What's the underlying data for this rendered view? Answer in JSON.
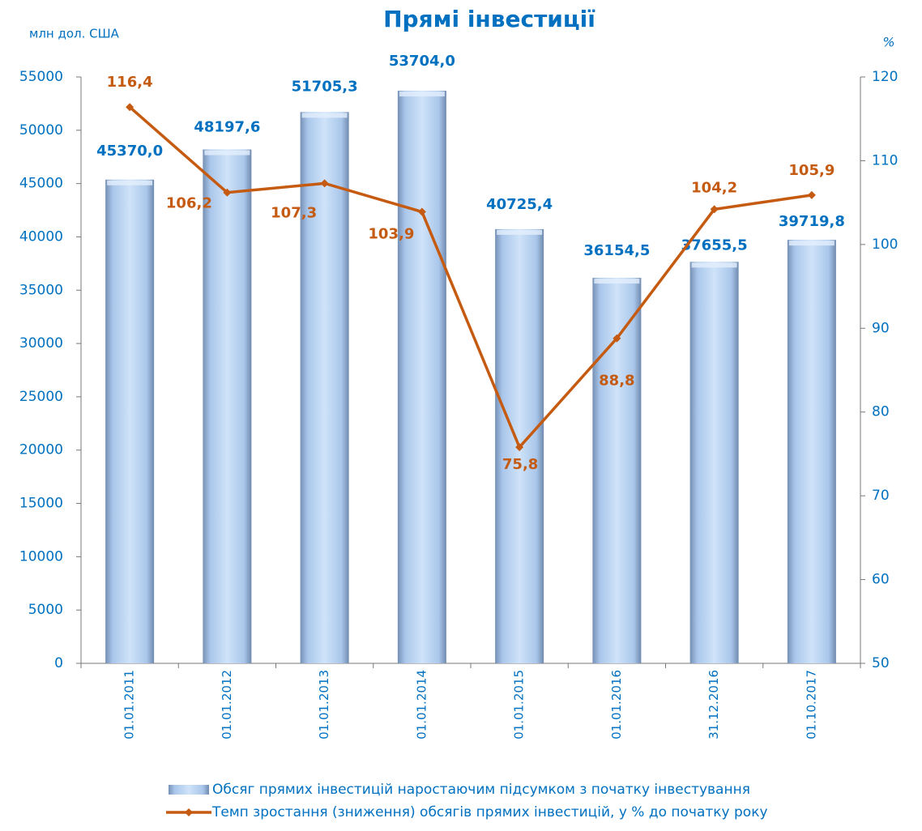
{
  "chart_data": {
    "type": "bar-line",
    "title": "Прямі інвестиції",
    "y_label": "млн дол. США",
    "y2_label": "%",
    "categories": [
      "01.01.2011",
      "01.01.2012",
      "01.01.2013",
      "01.01.2014",
      "01.01.2015",
      "01.01.2016",
      "31.12.2016",
      "01.10.2017"
    ],
    "series": [
      {
        "name": "Обсяг прямих інвестицій наростаючим підсумком з початку інвестування",
        "type": "bar",
        "color": "#b8d4f2",
        "values": [
          45370.0,
          48197.6,
          51705.3,
          53704.0,
          40725.4,
          36154.5,
          37655.5,
          39719.8
        ],
        "value_labels": [
          "45370,0",
          "48197,6",
          "51705,3",
          "53704,0",
          "40725,4",
          "36154,5",
          "37655,5",
          "39719,8"
        ]
      },
      {
        "name": "Темп зростання (зниження) обсягів прямих інвестицій, у % до початку року",
        "type": "line",
        "axis": "y2",
        "color": "#c55a11",
        "values": [
          116.4,
          106.2,
          107.3,
          103.9,
          75.8,
          88.8,
          104.2,
          105.9
        ],
        "value_labels": [
          "116,4",
          "106,2",
          "107,3",
          "103,9",
          "75,8",
          "88,8",
          "104,2",
          "105,9"
        ]
      }
    ],
    "ylim": [
      0,
      55000
    ],
    "yticks": [
      0,
      5000,
      10000,
      15000,
      20000,
      25000,
      30000,
      35000,
      40000,
      45000,
      50000,
      55000
    ],
    "y2lim": [
      50,
      120
    ],
    "y2ticks": [
      50,
      60,
      70,
      80,
      90,
      100,
      110,
      120
    ],
    "legend": "bottom"
  }
}
